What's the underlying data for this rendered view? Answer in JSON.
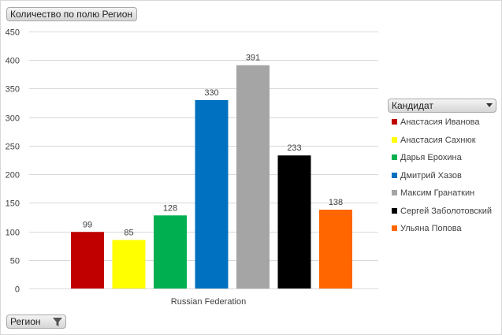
{
  "field_button_label": "Количество по полю Регион",
  "region_button_label": "Регион",
  "legend_title": "Кандидат",
  "icons": {
    "filter": "filter-icon",
    "legend_dropdown": "chevron-down-icon"
  },
  "chart_data": {
    "type": "bar",
    "categories": [
      "Russian Federation"
    ],
    "ylim": [
      0,
      450
    ],
    "yticks": [
      0,
      50,
      100,
      150,
      200,
      250,
      300,
      350,
      400,
      450
    ],
    "grid": true,
    "legend_position": "right",
    "series": [
      {
        "name": "Анастасия Иванова",
        "values": [
          99
        ],
        "color": "#c00000"
      },
      {
        "name": "Анастасия Сахнюк",
        "values": [
          85
        ],
        "color": "#ffff00"
      },
      {
        "name": "Дарья Ерохина",
        "values": [
          128
        ],
        "color": "#00b050"
      },
      {
        "name": "Дмитрий Хазов",
        "values": [
          330
        ],
        "color": "#0070c0"
      },
      {
        "name": "Максим Гранаткин",
        "values": [
          391
        ],
        "color": "#a5a5a5"
      },
      {
        "name": "Сергей Заболотовский",
        "values": [
          233
        ],
        "color": "#000000"
      },
      {
        "name": "Ульяна Попова",
        "values": [
          138
        ],
        "color": "#ff6600"
      }
    ]
  }
}
